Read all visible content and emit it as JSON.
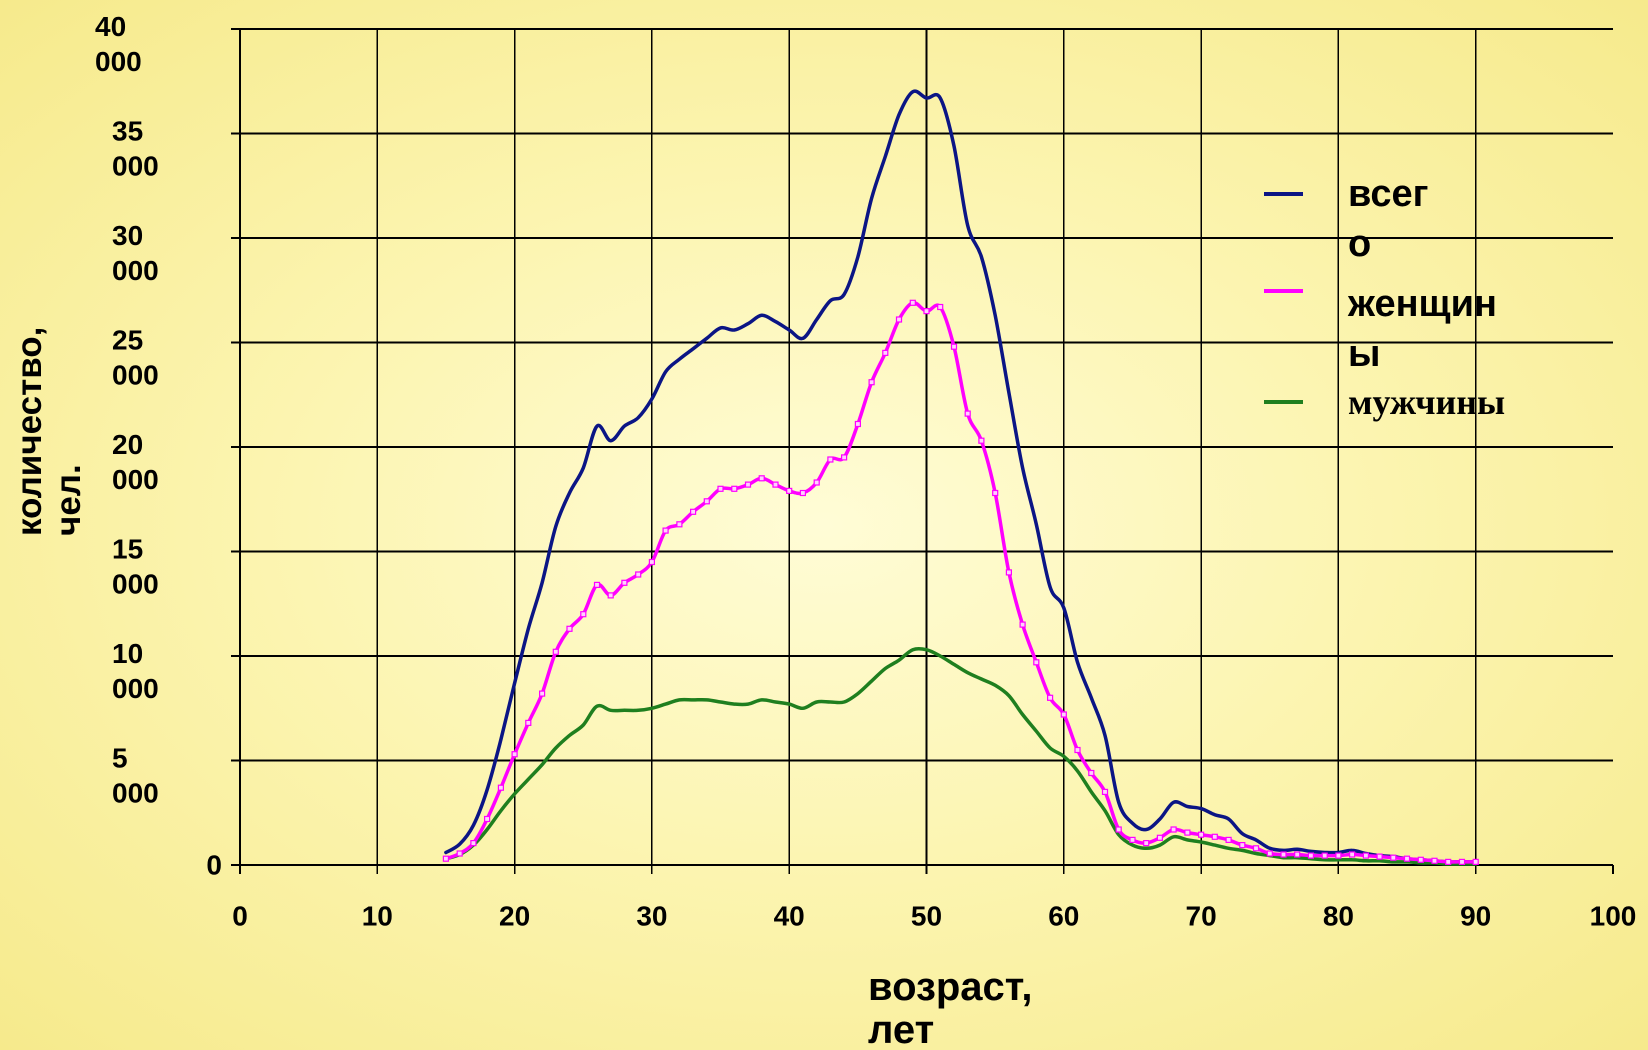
{
  "chart_data": {
    "type": "line",
    "xlabel": "возраст, лет",
    "ylabel": "количество, чел.",
    "xlim": [
      0,
      100
    ],
    "ylim": [
      0,
      40000
    ],
    "xticks": [
      0,
      10,
      20,
      30,
      40,
      50,
      60,
      70,
      80,
      90,
      100
    ],
    "yticks": [
      0,
      5000,
      10000,
      15000,
      20000,
      25000,
      30000,
      35000,
      40000
    ],
    "ytick_labels": [
      "0",
      "5 000",
      "10 000",
      "15 000",
      "20 000",
      "25 000",
      "30 000",
      "35 000",
      "40 000"
    ],
    "grid": true,
    "legend": "right",
    "x": [
      15,
      16,
      17,
      18,
      19,
      20,
      21,
      22,
      23,
      24,
      25,
      26,
      27,
      28,
      29,
      30,
      31,
      32,
      33,
      34,
      35,
      36,
      37,
      38,
      39,
      40,
      41,
      42,
      43,
      44,
      45,
      46,
      47,
      48,
      49,
      50,
      51,
      52,
      53,
      54,
      55,
      56,
      57,
      58,
      59,
      60,
      61,
      62,
      63,
      64,
      65,
      66,
      67,
      68,
      69,
      70,
      71,
      72,
      73,
      74,
      75,
      76,
      77,
      78,
      79,
      80,
      81,
      82,
      83,
      84,
      85,
      86,
      87,
      88,
      89,
      90
    ],
    "series": [
      {
        "name": "всего",
        "color": "#0b1585",
        "values": [
          600,
          1000,
          1900,
          3600,
          6000,
          8700,
          11300,
          13500,
          16200,
          17800,
          19000,
          21000,
          20300,
          21000,
          21400,
          22300,
          23600,
          24200,
          24700,
          25200,
          25700,
          25600,
          25900,
          26300,
          26000,
          25600,
          25200,
          26100,
          27000,
          27300,
          29100,
          31900,
          33900,
          35900,
          37000,
          36700,
          36700,
          34400,
          30600,
          29100,
          26300,
          22600,
          19000,
          16300,
          13300,
          12300,
          9700,
          8000,
          6200,
          3000,
          2000,
          1700,
          2200,
          3000,
          2800,
          2700,
          2400,
          2200,
          1500,
          1200,
          800,
          700,
          750,
          650,
          600,
          600,
          700,
          550,
          450,
          400,
          300,
          250,
          200,
          150,
          150,
          150
        ]
      },
      {
        "name": "женщины",
        "color": "#ff00ff",
        "marker": "square",
        "values": [
          300,
          550,
          1050,
          2200,
          3700,
          5300,
          6800,
          8200,
          10200,
          11300,
          12000,
          13400,
          12900,
          13500,
          13900,
          14500,
          16000,
          16300,
          16900,
          17400,
          18000,
          18000,
          18200,
          18500,
          18200,
          17900,
          17800,
          18300,
          19400,
          19500,
          21100,
          23100,
          24500,
          26100,
          26900,
          26500,
          26700,
          24800,
          21600,
          20300,
          17800,
          14000,
          11500,
          9700,
          8000,
          7200,
          5500,
          4400,
          3500,
          1700,
          1200,
          1050,
          1300,
          1700,
          1550,
          1450,
          1350,
          1200,
          950,
          800,
          550,
          500,
          500,
          450,
          450,
          450,
          500,
          450,
          400,
          350,
          300,
          250,
          200,
          150,
          150,
          150
        ]
      },
      {
        "name": "мужчины",
        "color": "#1f7f1f",
        "values": [
          300,
          500,
          950,
          1700,
          2600,
          3400,
          4100,
          4800,
          5600,
          6200,
          6700,
          7600,
          7400,
          7400,
          7400,
          7500,
          7700,
          7900,
          7900,
          7900,
          7800,
          7700,
          7700,
          7900,
          7800,
          7700,
          7500,
          7800,
          7800,
          7800,
          8200,
          8800,
          9400,
          9800,
          10300,
          10300,
          10000,
          9600,
          9200,
          8900,
          8600,
          8100,
          7200,
          6400,
          5600,
          5200,
          4500,
          3500,
          2600,
          1450,
          950,
          800,
          950,
          1350,
          1200,
          1100,
          950,
          800,
          700,
          550,
          450,
          350,
          350,
          300,
          250,
          250,
          250,
          200,
          200,
          150,
          150,
          100,
          100,
          50,
          50,
          50
        ]
      }
    ]
  }
}
